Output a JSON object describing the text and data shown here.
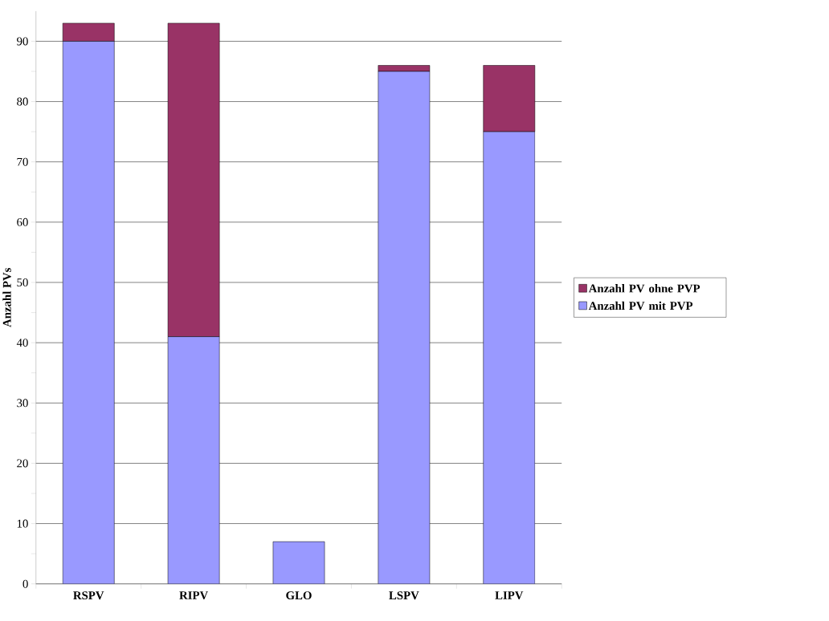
{
  "chart_data": {
    "type": "bar",
    "stacked": true,
    "ylabel": "Anzahl PVs",
    "categories": [
      "RSPV",
      "RIPV",
      "GLO",
      "LSPV",
      "LIPV"
    ],
    "series": [
      {
        "name": "Anzahl PV mit PVP",
        "color": "#9999ff",
        "values": [
          90,
          41,
          7,
          85,
          75
        ]
      },
      {
        "name": "Anzahl PV ohne PVP",
        "color": "#993366",
        "values": [
          3,
          52,
          0,
          1,
          11
        ]
      }
    ],
    "ylim": [
      0,
      95
    ],
    "yticks": [
      0,
      10,
      20,
      30,
      40,
      50,
      60,
      70,
      80,
      90
    ],
    "grid": "y",
    "legend": "right"
  }
}
